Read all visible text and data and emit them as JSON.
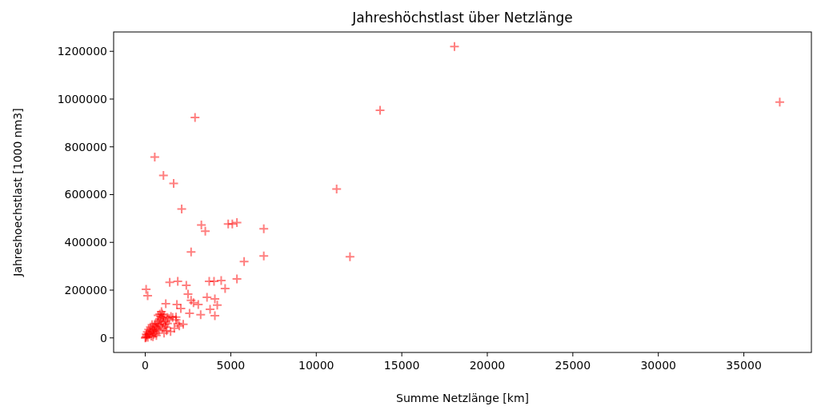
{
  "chart_data": {
    "type": "scatter",
    "title": "Jahreshöchstlast über Netzlänge",
    "xlabel": "Summe Netzlänge [km]",
    "ylabel": "Jahreshoechstlast [1000 nm3]",
    "marker": "cross",
    "xlim": [
      -1850,
      38950
    ],
    "ylim": [
      -61000,
      1281000
    ],
    "xticks": [
      0,
      5000,
      10000,
      15000,
      20000,
      25000,
      30000,
      35000
    ],
    "yticks": [
      0,
      200000,
      400000,
      600000,
      800000,
      1000000,
      1200000
    ],
    "x": [
      18080,
      37100,
      13730,
      2910,
      555,
      1063,
      1660,
      11190,
      2130,
      3280,
      3510,
      4850,
      5090,
      5360,
      6930,
      11970,
      6930,
      5780,
      2680,
      1430,
      1900,
      2400,
      2500,
      2680,
      2820,
      3100,
      2590,
      3240,
      50,
      140,
      1200,
      1850,
      2080,
      1990,
      2220,
      3610,
      4070,
      4210,
      3740,
      4020,
      4440,
      4670,
      5360,
      3790,
      4070,
      1800,
      1480,
      0,
      50,
      100,
      150,
      200,
      250,
      300,
      350,
      400,
      450,
      500,
      550,
      600,
      650,
      700,
      750,
      800,
      850,
      900,
      950,
      1000,
      1050,
      1100,
      1200,
      1300,
      1400,
      1500,
      1600,
      1700,
      1800,
      1900,
      1000,
      800,
      600,
      700,
      900,
      400,
      500,
      300,
      200,
      120,
      60,
      30,
      1100,
      1250,
      950,
      850,
      750,
      1150,
      1300,
      650,
      450,
      1050,
      550,
      1200
    ],
    "series": [
      {
        "color": "#ff0000",
        "values": [
          1220000,
          987000,
          953000,
          923000,
          757000,
          680000,
          647000,
          623000,
          540000,
          473000,
          447000,
          477000,
          477000,
          483000,
          457000,
          340000,
          343000,
          320000,
          360000,
          233000,
          237000,
          220000,
          183000,
          157000,
          147000,
          140000,
          103000,
          97000,
          203000,
          177000,
          143000,
          140000,
          123000,
          50000,
          57000,
          170000,
          163000,
          137000,
          237000,
          237000,
          240000,
          207000,
          247000,
          120000,
          93000,
          87000,
          27000,
          0,
          5000,
          12000,
          3000,
          20000,
          15000,
          30000,
          8000,
          25000,
          40000,
          35000,
          50000,
          20000,
          45000,
          60000,
          70000,
          55000,
          80000,
          90000,
          75000,
          100000,
          85000,
          95000,
          70000,
          60000,
          80000,
          90000,
          85000,
          40000,
          75000,
          60000,
          40000,
          30000,
          60000,
          35000,
          50000,
          55000,
          15000,
          45000,
          35000,
          25000,
          15000,
          2000,
          20000,
          30000,
          110000,
          100000,
          95000,
          55000,
          85000,
          10000,
          5000,
          65000,
          28000,
          45000
        ]
      }
    ]
  }
}
